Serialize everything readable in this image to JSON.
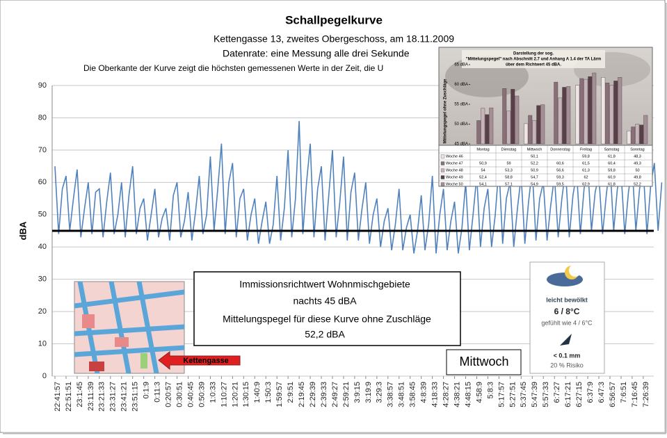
{
  "chart_data": [
    {
      "type": "line",
      "title": "Schallpegelkurve",
      "subtitle": [
        "Kettengasse 13, zweites Obergeschoss, am 18.11.2009",
        "Datenrate: eine Messung alle drei Sekunde",
        "Die Oberkante der Kurve zeigt die höchsten gemessenen Werte  in der Zeit, die U"
      ],
      "ylabel": "dBA",
      "categories": [
        "22:41:57",
        null,
        null,
        "22:51:51",
        null,
        null,
        "23:1:45",
        null,
        null,
        "23:11:39",
        null,
        null,
        "23:21:33",
        null,
        null,
        "23:31:27",
        null,
        null,
        "23:41:21",
        null,
        null,
        "23:51:15",
        null,
        null,
        "0:1:9",
        null,
        null,
        "0:11:3",
        null,
        null,
        "0:20:57",
        null,
        null,
        "0:30:51",
        null,
        null,
        "0:40:45",
        null,
        null,
        "0:50:39",
        null,
        null,
        "1:0:33",
        null,
        null,
        "1:10:27",
        null,
        null,
        "1:20:21",
        null,
        null,
        "1:30:15",
        null,
        null,
        "1:40:9",
        null,
        null,
        "1:50:3",
        null,
        null,
        "1:59:57",
        null,
        null,
        "2:9:51",
        null,
        null,
        "2:19:45",
        null,
        null,
        "2:29:39",
        null,
        null,
        "2:39:33",
        null,
        null,
        "2:49:27",
        null,
        null,
        "2:59:21",
        null,
        null,
        "3:9:15",
        null,
        null,
        "3:19:9",
        null,
        null,
        "3:29:3",
        null,
        null,
        "3:38:57",
        null,
        null,
        "3:48:51",
        null,
        null,
        "3:58:45",
        null,
        null,
        "4:8:39",
        null,
        null,
        "4:18:33",
        null,
        null,
        "4:28:27",
        null,
        null,
        "4:38:21",
        null,
        null,
        "4:48:15",
        null,
        null,
        "4:58:9",
        null,
        null,
        "5:8:3",
        null,
        null,
        "5:17:57",
        null,
        null,
        "5:27:51",
        null,
        null,
        "5:37:45",
        null,
        null,
        "5:47:39",
        null,
        null,
        "5:57:33",
        null,
        null,
        "6:7:27",
        null,
        null,
        "6:17:21",
        null,
        null,
        "6:27:15",
        null,
        null,
        "6:37:9",
        null,
        null,
        "6:47:3",
        null,
        null,
        "6:56:57",
        null,
        null,
        "7:6:51",
        null,
        null,
        "7:16:45",
        null,
        null,
        "7:26:39",
        null,
        null,
        null,
        null,
        null
      ],
      "values": [
        65,
        44,
        58,
        62,
        45,
        55,
        64,
        43,
        52,
        60,
        44,
        57,
        58,
        43,
        54,
        63,
        44,
        50,
        60,
        43,
        56,
        65,
        44,
        52,
        55,
        42,
        50,
        58,
        43,
        49,
        52,
        42,
        56,
        60,
        43,
        48,
        57,
        42,
        51,
        62,
        44,
        50,
        68,
        45,
        58,
        72,
        44,
        60,
        66,
        43,
        55,
        58,
        42,
        50,
        55,
        41,
        48,
        54,
        41,
        47,
        62,
        42,
        52,
        70,
        43,
        55,
        79,
        44,
        60,
        72,
        43,
        58,
        65,
        42,
        56,
        70,
        43,
        54,
        68,
        42,
        57,
        63,
        42,
        52,
        60,
        41,
        50,
        55,
        40,
        48,
        52,
        39,
        47,
        58,
        39,
        46,
        50,
        38,
        45,
        56,
        39,
        47,
        62,
        38,
        50,
        58,
        39,
        48,
        54,
        38,
        46,
        60,
        39,
        50,
        62,
        40,
        52,
        58,
        40,
        50,
        65,
        41,
        55,
        60,
        40,
        52,
        62,
        41,
        54,
        64,
        42,
        55,
        60,
        42,
        53,
        62,
        43,
        55,
        64,
        43,
        56,
        63,
        44,
        58,
        65,
        45,
        57,
        62,
        44,
        56,
        66,
        45,
        58,
        63,
        44,
        57,
        65,
        45,
        58,
        64,
        44,
        59,
        66,
        45,
        60
      ],
      "color": "#4f81bd",
      "threshold": 45,
      "threshold_color": "#000000",
      "ylim": [
        0,
        90
      ],
      "yticks": [
        0,
        10,
        20,
        30,
        40,
        50,
        60,
        70,
        80,
        90
      ],
      "grid": true
    },
    {
      "type": "bar",
      "title": [
        "Darstellung der sog.",
        "\"Mittelungspegel\" nach Abschnitt 2.7 und Anhang A 1.4 der TA Lärm",
        "über dem Richtwert 45 dBA."
      ],
      "ylabel": "Mittelungspegel ohne Zuschläge",
      "categories": [
        "Montag",
        "Dienstag",
        "Mittwoch",
        "Donnerstag",
        "Freitag",
        "Samstag",
        "Sonntag"
      ],
      "series": [
        {
          "name": "Woche 46",
          "color": "#eee4e4",
          "values": [
            null,
            null,
            50.1,
            null,
            59.8,
            61.8,
            48.3
          ],
          "value_labels": [
            null,
            null,
            "50,1",
            null,
            "59,8",
            "61,8",
            "48,3"
          ]
        },
        {
          "name": "Woche 47",
          "color": "#8a6e78",
          "values": [
            50.9,
            59,
            52.2,
            60.6,
            61.5,
            60.4,
            49.3
          ],
          "value_labels": [
            "50,9",
            "59",
            "52,2",
            "60,6",
            "61,5",
            "60,4",
            "49,3"
          ]
        },
        {
          "name": "Woche 48",
          "color": "#c9b3bb",
          "values": [
            54,
            53.3,
            50.9,
            56.6,
            61.3,
            59.8,
            50
          ],
          "value_labels": [
            "54",
            "53,3",
            "50,9",
            "56,6",
            "61,3",
            "59,8",
            "50"
          ]
        },
        {
          "name": "Woche 49",
          "color": "#5a3e48",
          "values": [
            52.4,
            58.8,
            54.7,
            59.3,
            62,
            60.9,
            49.8
          ],
          "value_labels": [
            "52,4",
            "58,8",
            "54,7",
            "59,3",
            "62",
            "60,9",
            "49,8"
          ]
        },
        {
          "name": "Woche 50",
          "color": "#a58e96",
          "values": [
            54.1,
            57.1,
            54.9,
            59.5,
            62.9,
            61.8,
            52.2
          ],
          "value_labels": [
            "54,1",
            "57,1",
            "54,9",
            "59,5",
            "62,9",
            "61,8",
            "52,2"
          ]
        }
      ],
      "ylim": [
        45,
        65
      ],
      "yticks": [
        {
          "value": 45,
          "label": "45 dBA"
        },
        {
          "value": 50,
          "label": "50 dBA"
        },
        {
          "value": 55,
          "label": "55 dBA"
        },
        {
          "value": 60,
          "label": "60 dBA"
        },
        {
          "value": 65,
          "label": "65 dBA"
        }
      ]
    }
  ],
  "info_box": [
    "Immissionsrichtwert Wohnmischgebiete",
    "nachts 45 dBA",
    "Mittelungspegel für diese Kurve ohne Zuschläge",
    "52,2 dBA"
  ],
  "day": "Mittwoch",
  "map": {
    "label": "Kettengasse"
  },
  "weather": {
    "condition": "leicht bewölkt",
    "temperature": "6 / 8°C",
    "feels_like": "gefühlt wie 4 / 6°C",
    "precipitation": "< 0.1 mm",
    "risk": "20 % Risiko"
  }
}
